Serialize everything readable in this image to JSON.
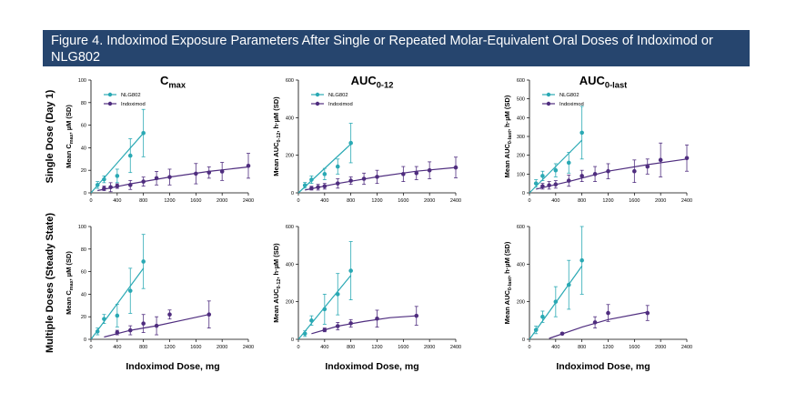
{
  "title": "Figure 4. Indoximod Exposure Parameters After Single or Repeated Molar-Equivalent Oral Doses of Indoximod or NLG802",
  "column_titles": [
    {
      "main": "C",
      "sub": "max"
    },
    {
      "main": "AUC",
      "sub": "0-12"
    },
    {
      "main": "AUC",
      "sub": "0-last"
    }
  ],
  "row_titles": [
    "Single Dose (Day 1)",
    "Multiple Doses (Steady State)"
  ],
  "shared_xlabel": "Indoximod Dose, mg",
  "colors": {
    "NLG802": "#2aa9b4",
    "Indoximod": "#4f2d7f",
    "title_bg": "#26456e"
  },
  "chart_data": [
    {
      "type": "scatter",
      "panel": "Single Dose Cmax",
      "ylabel": {
        "main": "Mean C",
        "sub": "max",
        "rest": ", µM (SD)"
      },
      "xlim": [
        0,
        2400
      ],
      "ylim": [
        0,
        100
      ],
      "xticks": [
        0,
        400,
        800,
        1200,
        1600,
        2000,
        2400
      ],
      "yticks": [
        0,
        20,
        40,
        60,
        80,
        100
      ],
      "legend": [
        "NLG802",
        "Indoximod"
      ],
      "series": [
        {
          "name": "NLG802",
          "points": [
            [
              100,
              7,
              3
            ],
            [
              200,
              12,
              3
            ],
            [
              400,
              15,
              6
            ],
            [
              600,
              33,
              15
            ],
            [
              800,
              53,
              21
            ]
          ],
          "fit": [
            [
              0,
              0
            ],
            [
              800,
              53
            ]
          ]
        },
        {
          "name": "Indoximod",
          "points": [
            [
              200,
              4,
              2
            ],
            [
              300,
              5,
              4
            ],
            [
              400,
              6,
              2
            ],
            [
              600,
              7,
              4
            ],
            [
              800,
              10,
              4
            ],
            [
              1000,
              13,
              6
            ],
            [
              1200,
              14,
              7
            ],
            [
              1600,
              17,
              9
            ],
            [
              1800,
              18,
              5
            ],
            [
              2000,
              19,
              8
            ],
            [
              2400,
              24,
              11
            ]
          ],
          "fit": [
            [
              100,
              2
            ],
            [
              600,
              8
            ],
            [
              1200,
              14
            ],
            [
              1800,
              19
            ],
            [
              2400,
              23
            ]
          ]
        }
      ]
    },
    {
      "type": "scatter",
      "panel": "Single Dose AUC0-12",
      "ylabel": {
        "main": "Mean AUC",
        "sub": "0-12",
        "rest": ", h·µM (SD)"
      },
      "xlim": [
        0,
        2400
      ],
      "ylim": [
        0,
        600
      ],
      "xticks": [
        0,
        400,
        800,
        1200,
        1600,
        2000,
        2400
      ],
      "yticks": [
        0,
        200,
        400,
        600
      ],
      "legend": [
        "NLG802",
        "Indoximod"
      ],
      "series": [
        {
          "name": "NLG802",
          "points": [
            [
              100,
              40,
              15
            ],
            [
              200,
              70,
              20
            ],
            [
              400,
              100,
              30
            ],
            [
              600,
              140,
              40
            ],
            [
              800,
              265,
              105
            ]
          ],
          "fit": [
            [
              0,
              0
            ],
            [
              800,
              260
            ]
          ]
        },
        {
          "name": "Indoximod",
          "points": [
            [
              200,
              25,
              10
            ],
            [
              300,
              30,
              15
            ],
            [
              400,
              35,
              15
            ],
            [
              600,
              50,
              25
            ],
            [
              800,
              65,
              20
            ],
            [
              1000,
              75,
              30
            ],
            [
              1200,
              85,
              35
            ],
            [
              1600,
              100,
              40
            ],
            [
              1800,
              105,
              35
            ],
            [
              2000,
              120,
              45
            ],
            [
              2400,
              135,
              55
            ]
          ],
          "fit": [
            [
              100,
              15
            ],
            [
              600,
              50
            ],
            [
              1200,
              85
            ],
            [
              1800,
              115
            ],
            [
              2400,
              135
            ]
          ]
        }
      ]
    },
    {
      "type": "scatter",
      "panel": "Single Dose AUC0-last",
      "ylabel": {
        "main": "Mean AUC",
        "sub": "0-last",
        "rest": ", h·µM (SD)"
      },
      "xlim": [
        0,
        2400
      ],
      "ylim": [
        0,
        600
      ],
      "xticks": [
        0,
        400,
        800,
        1200,
        1600,
        2000,
        2400
      ],
      "yticks": [
        0,
        100,
        200,
        300,
        400,
        500,
        600
      ],
      "legend": [
        "NLG802",
        "Indoximod"
      ],
      "series": [
        {
          "name": "NLG802",
          "points": [
            [
              100,
              50,
              20
            ],
            [
              200,
              90,
              25
            ],
            [
              400,
              120,
              35
            ],
            [
              600,
              160,
              55
            ],
            [
              800,
              320,
              140
            ]
          ],
          "fit": [
            [
              0,
              0
            ],
            [
              800,
              280
            ]
          ]
        },
        {
          "name": "Indoximod",
          "points": [
            [
              200,
              35,
              15
            ],
            [
              300,
              40,
              20
            ],
            [
              400,
              45,
              20
            ],
            [
              600,
              65,
              30
            ],
            [
              800,
              90,
              30
            ],
            [
              1000,
              100,
              40
            ],
            [
              1200,
              115,
              40
            ],
            [
              1600,
              115,
              60
            ],
            [
              1800,
              140,
              40
            ],
            [
              2000,
              175,
              90
            ],
            [
              2400,
              185,
              70
            ]
          ],
          "fit": [
            [
              100,
              20
            ],
            [
              600,
              60
            ],
            [
              1200,
              115
            ],
            [
              1800,
              150
            ],
            [
              2400,
              180
            ]
          ]
        }
      ]
    },
    {
      "type": "scatter",
      "panel": "Multiple Doses Cmax",
      "ylabel": {
        "main": "Mean C",
        "sub": "max",
        "rest": ", µM (SD)"
      },
      "xlim": [
        0,
        2400
      ],
      "ylim": [
        0,
        100
      ],
      "xticks": [
        0,
        400,
        800,
        1200,
        1600,
        2000,
        2400
      ],
      "yticks": [
        0,
        20,
        40,
        60,
        80,
        100
      ],
      "series": [
        {
          "name": "NLG802",
          "points": [
            [
              100,
              7,
              3
            ],
            [
              200,
              18,
              4
            ],
            [
              400,
              21,
              10
            ],
            [
              600,
              43,
              20
            ],
            [
              800,
              69,
              24
            ]
          ],
          "fit": [
            [
              0,
              0
            ],
            [
              800,
              63
            ]
          ]
        },
        {
          "name": "Indoximod",
          "points": [
            [
              400,
              6,
              2
            ],
            [
              600,
              8,
              4
            ],
            [
              800,
              14,
              8
            ],
            [
              1000,
              12,
              8
            ],
            [
              1200,
              22,
              4
            ],
            [
              1800,
              22,
              12
            ]
          ],
          "fit": [
            [
              200,
              2
            ],
            [
              600,
              8
            ],
            [
              1000,
              12
            ],
            [
              1400,
              17
            ],
            [
              1800,
              22
            ]
          ]
        }
      ]
    },
    {
      "type": "scatter",
      "panel": "Multiple Doses AUC0-12",
      "ylabel": {
        "main": "Mean AUC",
        "sub": "0-12",
        "rest": ", h·µM (SD)"
      },
      "xlim": [
        0,
        2400
      ],
      "ylim": [
        0,
        600
      ],
      "xticks": [
        0,
        400,
        800,
        1200,
        1600,
        2000,
        2400
      ],
      "yticks": [
        0,
        200,
        400,
        600
      ],
      "series": [
        {
          "name": "NLG802",
          "points": [
            [
              100,
              30,
              15
            ],
            [
              200,
              100,
              25
            ],
            [
              400,
              160,
              80
            ],
            [
              600,
              240,
              110
            ],
            [
              800,
              365,
              155
            ]
          ],
          "fit": [
            [
              0,
              0
            ],
            [
              800,
              340
            ]
          ]
        },
        {
          "name": "Indoximod",
          "points": [
            [
              400,
              50,
              10
            ],
            [
              600,
              70,
              20
            ],
            [
              800,
              85,
              20
            ],
            [
              1200,
              110,
              45
            ],
            [
              1800,
              125,
              50
            ]
          ],
          "fit": [
            [
              200,
              30
            ],
            [
              600,
              70
            ],
            [
              1000,
              95
            ],
            [
              1400,
              115
            ],
            [
              1800,
              125
            ]
          ]
        }
      ]
    },
    {
      "type": "scatter",
      "panel": "Multiple Doses AUC0-last",
      "ylabel": {
        "main": "Mean AUC",
        "sub": "0-last",
        "rest": ", h·µM (SD)"
      },
      "xlim": [
        0,
        2400
      ],
      "ylim": [
        0,
        600
      ],
      "xticks": [
        0,
        400,
        800,
        1200,
        1600,
        2000,
        2400
      ],
      "yticks": [
        0,
        200,
        400,
        600
      ],
      "series": [
        {
          "name": "NLG802",
          "points": [
            [
              100,
              50,
              20
            ],
            [
              200,
              120,
              30
            ],
            [
              400,
              200,
              80
            ],
            [
              600,
              290,
              130
            ],
            [
              800,
              420,
              180
            ]
          ],
          "fit": [
            [
              0,
              0
            ],
            [
              800,
              390
            ]
          ]
        },
        {
          "name": "Indoximod",
          "points": [
            [
              500,
              30,
              5
            ],
            [
              1000,
              90,
              30
            ],
            [
              1200,
              140,
              45
            ],
            [
              1800,
              140,
              40
            ]
          ],
          "fit": [
            [
              300,
              5
            ],
            [
              800,
              65
            ],
            [
              1200,
              105
            ],
            [
              1800,
              145
            ]
          ]
        }
      ]
    }
  ]
}
